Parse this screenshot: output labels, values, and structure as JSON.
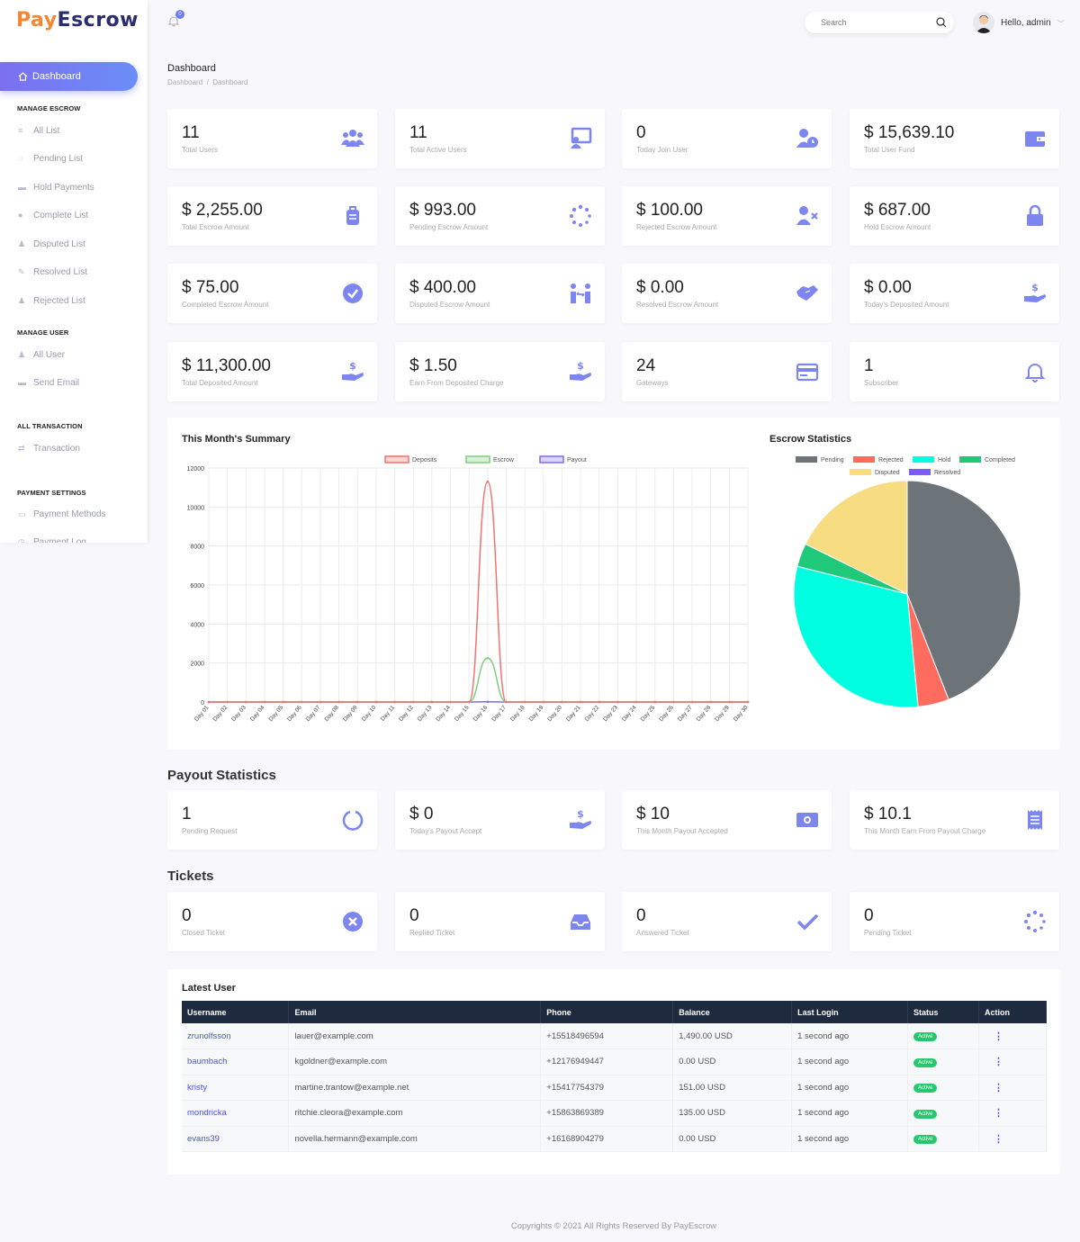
{
  "brand": {
    "part1": "Pay",
    "part2": "Escrow"
  },
  "header": {
    "notifications": "0",
    "search_placeholder": "Search",
    "greeting": "Hello, admin"
  },
  "sidebar": {
    "active": "Dashboard",
    "sections": [
      {
        "title": "MANAGE ESCROW",
        "items": [
          "All List",
          "Pending List",
          "Hold Payments",
          "Complete List",
          "Disputed List",
          "Resolved List",
          "Rejected List"
        ]
      },
      {
        "title": "MANAGE USER",
        "items": [
          "All User",
          "Send Email"
        ]
      },
      {
        "title": "ALL TRANSACTION",
        "items": [
          "Transaction"
        ]
      },
      {
        "title": "PAYMENT SETTINGS",
        "items": [
          "Payment Methods",
          "Payment Log"
        ]
      }
    ]
  },
  "page": {
    "title": "Dashboard",
    "breadcrumb": [
      "Dashboard",
      "Dashboard"
    ]
  },
  "stats": [
    {
      "value": "11",
      "label": "Total Users",
      "icon": "users-icon"
    },
    {
      "value": "11",
      "label": "Total Active Users",
      "icon": "monitor-user-icon"
    },
    {
      "value": "0",
      "label": "Today Join User",
      "icon": "user-clock-icon"
    },
    {
      "value": "$ 15,639.10",
      "label": "Total User Fund",
      "icon": "wallet-icon"
    },
    {
      "value": "$ 2,255.00",
      "label": "Total Escrow Amount",
      "icon": "suitcase-icon"
    },
    {
      "value": "$ 993.00",
      "label": "Pending Escrow Amount",
      "icon": "spinner-icon"
    },
    {
      "value": "$ 100.00",
      "label": "Rejected Escrow Amount",
      "icon": "user-times-icon"
    },
    {
      "value": "$ 687.00",
      "label": "Hold Escrow Amount",
      "icon": "lock-icon"
    },
    {
      "value": "$ 75.00",
      "label": "Completed Escrow Amount",
      "icon": "check-circle-icon"
    },
    {
      "value": "$ 400.00",
      "label": "Disputed Escrow Amount",
      "icon": "people-arrows-icon"
    },
    {
      "value": "$ 0.00",
      "label": "Resolved Escrow Amount",
      "icon": "handshake-icon"
    },
    {
      "value": "$ 0.00",
      "label": "Today's Deposited Amount",
      "icon": "hand-dollar-icon"
    },
    {
      "value": "$ 11,300.00",
      "label": "Total Deposited Amount",
      "icon": "hand-dollar-icon"
    },
    {
      "value": "$ 1.50",
      "label": "Earn From Deposited Charge",
      "icon": "hand-dollar-icon"
    },
    {
      "value": "24",
      "label": "Gateways",
      "icon": "credit-card-icon"
    },
    {
      "value": "1",
      "label": "Subscriber",
      "icon": "bell-icon"
    }
  ],
  "summary_title": "This Month's Summary",
  "escrow_title": "Escrow Statistics",
  "chart_data": [
    {
      "type": "line",
      "title": "This Month's Summary",
      "x": [
        "Day 01",
        "Day 02",
        "Day 03",
        "Day 04",
        "Day 05",
        "Day 06",
        "Day 07",
        "Day 08",
        "Day 09",
        "Day 10",
        "Day 11",
        "Day 12",
        "Day 13",
        "Day 14",
        "Day 15",
        "Day 16",
        "Day 17",
        "Day 18",
        "Day 19",
        "Day 20",
        "Day 21",
        "Day 22",
        "Day 23",
        "Day 24",
        "Day 25",
        "Day 26",
        "Day 27",
        "Day 28",
        "Day 29",
        "Day 30"
      ],
      "ylim": [
        0,
        12000
      ],
      "yticks": [
        0,
        2000,
        4000,
        6000,
        8000,
        10000,
        12000
      ],
      "series": [
        {
          "name": "Deposits",
          "color": "#f2726f",
          "values": [
            0,
            0,
            0,
            0,
            0,
            0,
            0,
            0,
            0,
            0,
            0,
            0,
            0,
            0,
            0,
            11300,
            0,
            0,
            0,
            0,
            0,
            0,
            0,
            0,
            0,
            0,
            0,
            0,
            0,
            0
          ]
        },
        {
          "name": "Escrow",
          "color": "#7fce7f",
          "values": [
            0,
            0,
            0,
            0,
            0,
            0,
            0,
            0,
            0,
            0,
            0,
            0,
            0,
            0,
            0,
            2255,
            0,
            0,
            0,
            0,
            0,
            0,
            0,
            0,
            0,
            0,
            0,
            0,
            0,
            0
          ]
        },
        {
          "name": "Payout",
          "color": "#7a6cf0",
          "values": [
            0,
            0,
            0,
            0,
            0,
            0,
            0,
            0,
            0,
            0,
            0,
            0,
            0,
            0,
            0,
            10,
            0,
            0,
            0,
            0,
            0,
            0,
            0,
            0,
            0,
            0,
            0,
            0,
            0,
            0
          ]
        }
      ],
      "legend": "top"
    },
    {
      "type": "pie",
      "title": "Escrow Statistics",
      "labels": [
        "Pending",
        "Rejected",
        "Hold",
        "Completed",
        "Disputed",
        "Resolved"
      ],
      "colors": [
        "#6c7379",
        "#ff6b5e",
        "#00ffe0",
        "#20c97a",
        "#f8dc82",
        "#7a5cf0"
      ],
      "values": [
        993,
        100,
        687,
        75,
        400,
        0
      ],
      "legend": "top"
    }
  ],
  "payout": {
    "title": "Payout Statistics",
    "cards": [
      {
        "value": "1",
        "label": "Pending Request",
        "icon": "circle-notch-icon"
      },
      {
        "value": "$ 0",
        "label": "Today's Payout Accept",
        "icon": "hand-dollar-icon"
      },
      {
        "value": "$ 10",
        "label": "This Month Payout Accepted",
        "icon": "money-bill-icon"
      },
      {
        "value": "$ 10.1",
        "label": "This Month Earn From Payout Charge",
        "icon": "receipt-icon"
      }
    ]
  },
  "tickets": {
    "title": "Tickets",
    "cards": [
      {
        "value": "0",
        "label": "Closed Ticket",
        "icon": "times-circle-icon"
      },
      {
        "value": "0",
        "label": "Replied Ticket",
        "icon": "inbox-icon"
      },
      {
        "value": "0",
        "label": "Answered Ticket",
        "icon": "check-icon"
      },
      {
        "value": "0",
        "label": "Pending Ticket",
        "icon": "spinner-icon"
      }
    ]
  },
  "latest_user": {
    "title": "Latest User",
    "columns": [
      "Username",
      "Email",
      "Phone",
      "Balance",
      "Last Login",
      "Status",
      "Action"
    ],
    "rows": [
      [
        "zrunolfsson",
        "lauer@example.com",
        "+15518496594",
        "1,490.00 USD",
        "1 second ago",
        "Active"
      ],
      [
        "baumbach",
        "kgoldner@example.com",
        "+12176949447",
        "0.00 USD",
        "1 second ago",
        "Active"
      ],
      [
        "kristy",
        "martine.trantow@example.net",
        "+15417754379",
        "151.00 USD",
        "1 second ago",
        "Active"
      ],
      [
        "mondricka",
        "ritchie.cleora@example.com",
        "+15863869389",
        "135.00 USD",
        "1 second ago",
        "Active"
      ],
      [
        "evans39",
        "novella.hermann@example.com",
        "+16168904279",
        "0.00 USD",
        "1 second ago",
        "Active"
      ]
    ]
  },
  "footer": "Copyrights © 2021 All Rights Reserved By PayEscrow",
  "colors": {
    "accent": "#6c7bf0",
    "icon": "#7d86ee",
    "table_header": "#1e2a3d",
    "active_badge": "#28c76f"
  }
}
